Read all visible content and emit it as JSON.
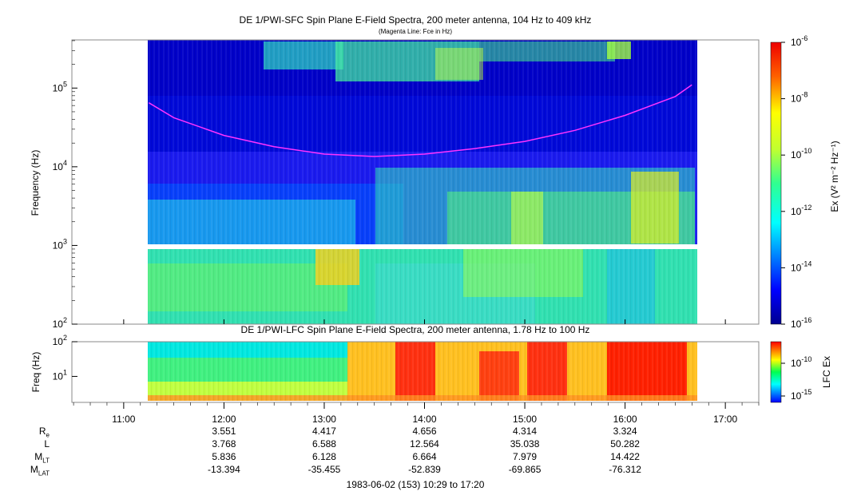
{
  "panel1": {
    "title": "DE 1/PWI-SFC  Spin Plane E-Field Spectra, 200 meter antenna, 104 Hz to 409 kHz",
    "subtitle": "(Magenta Line: Fce in Hz)",
    "ylabel": "Frequency (Hz)",
    "yticks": [
      {
        "base": "10",
        "exp": "2",
        "value": 100
      },
      {
        "base": "10",
        "exp": "3",
        "value": 1000
      },
      {
        "base": "10",
        "exp": "4",
        "value": 10000
      },
      {
        "base": "10",
        "exp": "5",
        "value": 100000
      }
    ],
    "colorbar_label": "Ex (V² m⁻² Hz⁻¹)",
    "colorbar_ticks": [
      {
        "base": "10",
        "exp": "-6"
      },
      {
        "base": "10",
        "exp": "-8"
      },
      {
        "base": "10",
        "exp": "-10"
      },
      {
        "base": "10",
        "exp": "-12"
      },
      {
        "base": "10",
        "exp": "-14"
      },
      {
        "base": "10",
        "exp": "-16"
      }
    ]
  },
  "panel2": {
    "title": "DE 1/PWI-LFC  Spin Plane E-Field Spectra, 200 meter antenna, 1.78 Hz to 100 Hz",
    "ylabel": "Freq (Hz)",
    "yticks": [
      {
        "base": "10",
        "exp": "1"
      },
      {
        "base": "10",
        "exp": "2"
      }
    ],
    "colorbar_label": "LFC Ex",
    "colorbar_ticks": [
      {
        "base": "10",
        "exp": "-10"
      },
      {
        "base": "10",
        "exp": "-15"
      }
    ]
  },
  "time_ticks": [
    "11:00",
    "12:00",
    "13:00",
    "14:00",
    "15:00",
    "16:00",
    "17:00"
  ],
  "ephemeris": {
    "rows": [
      {
        "label": "R",
        "sub": "e",
        "values": [
          "3.551",
          "4.417",
          "4.656",
          "4.314",
          "3.324"
        ]
      },
      {
        "label": "L",
        "sub": "",
        "values": [
          "3.768",
          "6.588",
          "12.564",
          "35.038",
          "50.282"
        ]
      },
      {
        "label": "M",
        "sub": "LT",
        "values": [
          "5.836",
          "6.128",
          "6.664",
          "7.979",
          "14.422"
        ]
      },
      {
        "label": "M",
        "sub": "LAT",
        "values": [
          "-13.394",
          "-35.455",
          "-52.839",
          "-69.865",
          "-76.312"
        ]
      }
    ]
  },
  "footer": "1983-06-02 (153) 10:29 to 17:20",
  "chart_data": [
    {
      "type": "heatmap",
      "title": "DE 1/PWI-SFC  Spin Plane E-Field Spectra, 200 meter antenna, 104 Hz to 409 kHz",
      "subtitle": "(Magenta Line: Fce in Hz)",
      "ylabel": "Frequency (Hz)",
      "yscale": "log",
      "ylim": [
        100,
        409000
      ],
      "xlim": [
        "10:29",
        "17:20"
      ],
      "data_coverage": [
        "11:15",
        "16:40"
      ],
      "colorscale": "jet",
      "colorbar_range": [
        "1e-16",
        "1e-6"
      ],
      "fce_line": {
        "name": "Fce",
        "color": "#ff33ff",
        "x": [
          "11:15",
          "11:30",
          "12:00",
          "12:30",
          "13:00",
          "13:30",
          "14:00",
          "14:30",
          "15:00",
          "15:30",
          "16:00",
          "16:30",
          "16:40"
        ],
        "y": [
          65000,
          42000,
          25000,
          18000,
          14500,
          13500,
          14500,
          17000,
          21000,
          29000,
          45000,
          78000,
          110000
        ]
      }
    },
    {
      "type": "heatmap",
      "title": "DE 1/PWI-LFC  Spin Plane E-Field Spectra, 200 meter antenna, 1.78 Hz to 100 Hz",
      "ylabel": "Freq (Hz)",
      "yscale": "log",
      "ylim": [
        1.78,
        100
      ],
      "xlim": [
        "10:29",
        "17:20"
      ],
      "data_coverage": [
        "11:15",
        "16:40"
      ],
      "colorscale": "jet",
      "colorbar_label": "LFC Ex"
    }
  ]
}
